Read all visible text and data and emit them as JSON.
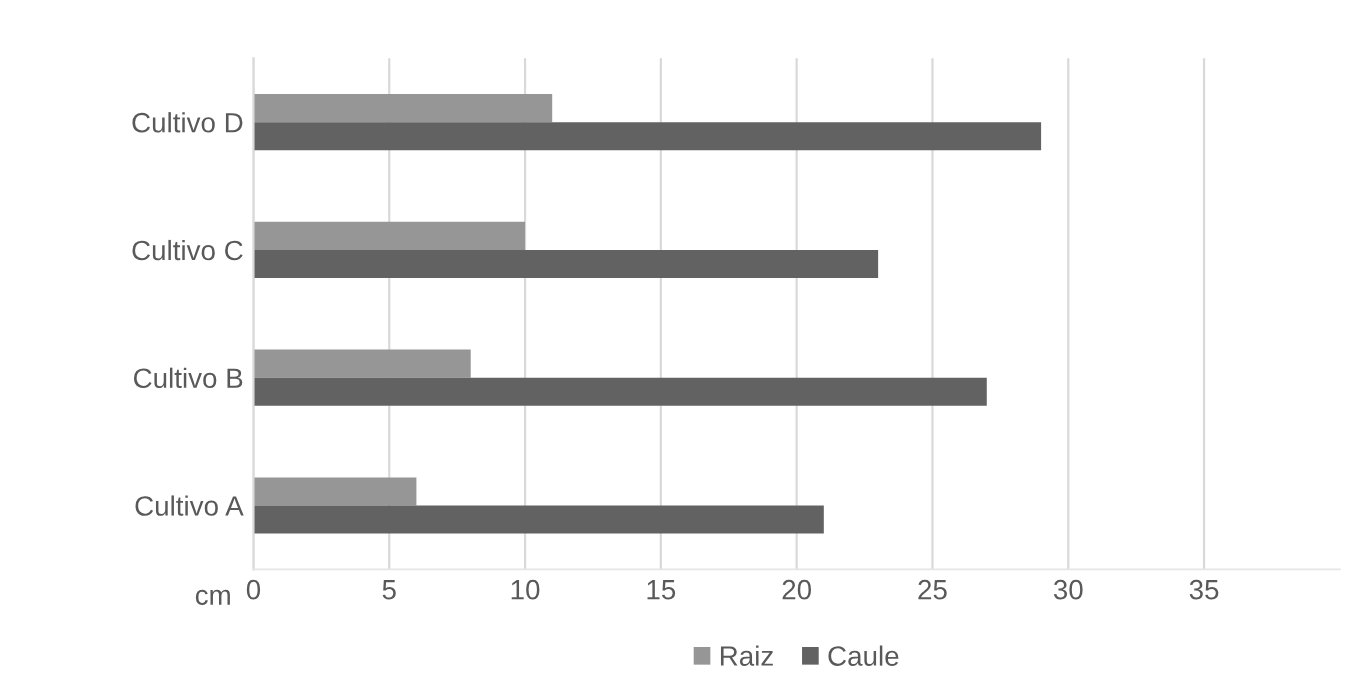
{
  "chart_data": {
    "type": "bar",
    "orientation": "horizontal",
    "categories": [
      "Cultivo D",
      "Cultivo C",
      "Cultivo B",
      "Cultivo A"
    ],
    "xlabel": "cm",
    "xlim": [
      0,
      40
    ],
    "xticks": [
      0,
      5,
      10,
      15,
      20,
      25,
      30,
      35
    ],
    "grid": "x",
    "legend": "bottom",
    "series": [
      {
        "name": "Raiz",
        "color": "#969696",
        "values": [
          11,
          10,
          8,
          6
        ]
      },
      {
        "name": "Caule",
        "color": "#626262",
        "values": [
          29,
          23,
          27,
          21
        ]
      }
    ]
  }
}
